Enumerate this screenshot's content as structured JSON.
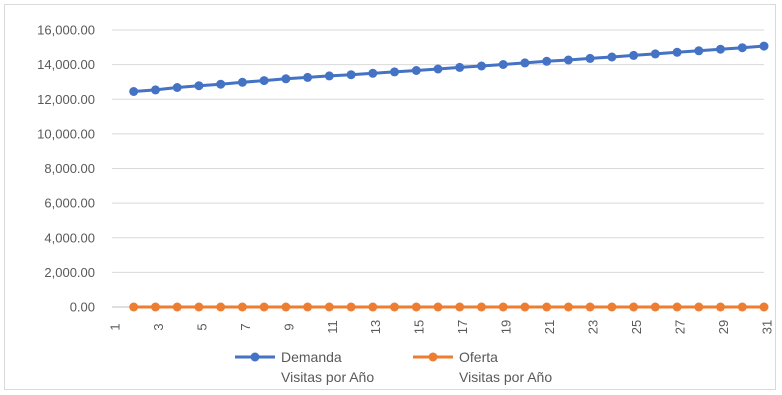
{
  "chart_data": {
    "type": "line",
    "title": "",
    "xlabel": "",
    "ylabel": "",
    "x_tick_labels": [
      "1",
      "3",
      "5",
      "7",
      "9",
      "11",
      "13",
      "15",
      "17",
      "19",
      "21",
      "23",
      "25",
      "27",
      "29",
      "31"
    ],
    "x": [
      2,
      3,
      4,
      5,
      6,
      7,
      8,
      9,
      10,
      11,
      12,
      13,
      14,
      15,
      16,
      17,
      18,
      19,
      20,
      21,
      22,
      23,
      24,
      25,
      26,
      27,
      28,
      29,
      30,
      31
    ],
    "xlim": [
      1,
      31
    ],
    "ylim": [
      0,
      16000
    ],
    "y_ticks": [
      0,
      2000,
      4000,
      6000,
      8000,
      10000,
      12000,
      14000,
      16000
    ],
    "y_tick_labels": [
      "0.00",
      "2,000.00",
      "4,000.00",
      "6,000.00",
      "8,000.00",
      "10,000.00",
      "12,000.00",
      "14,000.00",
      "16,000.00"
    ],
    "grid": true,
    "legend_position": "bottom",
    "series": [
      {
        "name": "Demanda",
        "name_line2": "Visitas por Año",
        "color": "#4472c4",
        "values": [
          12450,
          12540,
          12680,
          12780,
          12870,
          12980,
          13080,
          13180,
          13260,
          13350,
          13420,
          13500,
          13580,
          13660,
          13750,
          13840,
          13920,
          14010,
          14100,
          14190,
          14270,
          14360,
          14440,
          14530,
          14620,
          14710,
          14800,
          14890,
          14980,
          15070
        ]
      },
      {
        "name": "Oferta",
        "name_line2": "Visitas por Año",
        "color": "#ed7d31",
        "values": [
          0,
          0,
          0,
          0,
          0,
          0,
          0,
          0,
          0,
          0,
          0,
          0,
          0,
          0,
          0,
          0,
          0,
          0,
          0,
          0,
          0,
          0,
          0,
          0,
          0,
          0,
          0,
          0,
          0,
          0
        ]
      }
    ]
  }
}
